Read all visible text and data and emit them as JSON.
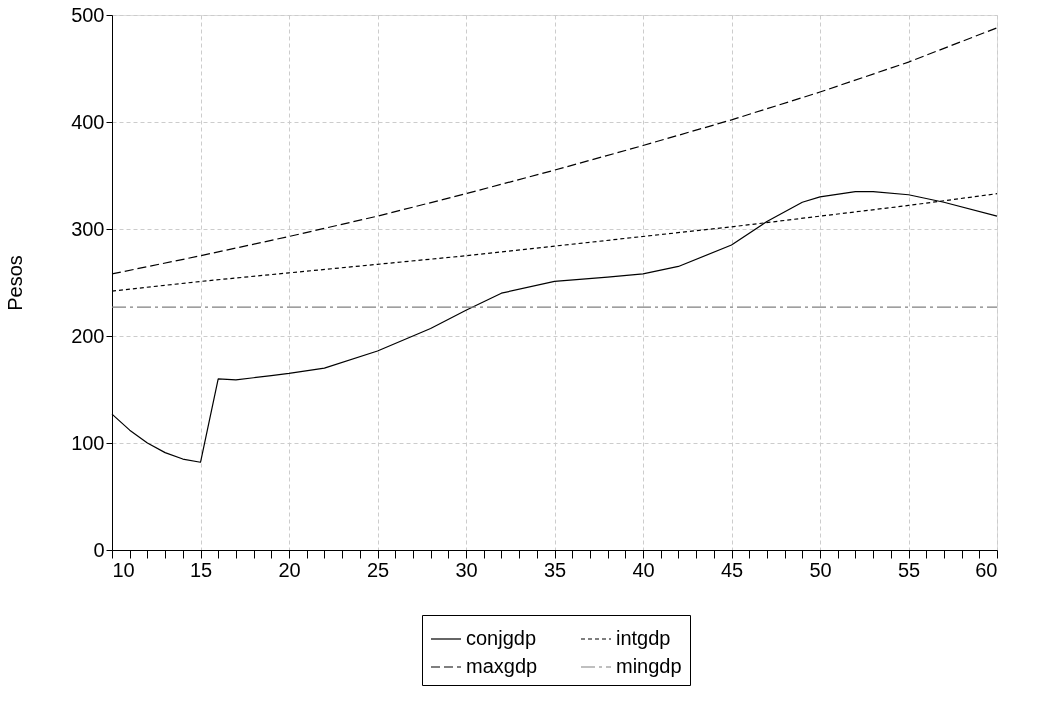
{
  "chart_data": {
    "type": "line",
    "ylabel": "Pesos",
    "xlim": [
      10,
      60
    ],
    "ylim": [
      0,
      500
    ],
    "xticks": [
      10,
      {
        "value": 11,
        "label": null
      },
      {
        "value": 12,
        "label": null
      },
      {
        "value": 13,
        "label": null
      },
      {
        "value": 14,
        "label": null
      },
      15,
      {
        "value": 16,
        "label": null
      },
      {
        "value": 17,
        "label": null
      },
      {
        "value": 18,
        "label": null
      },
      {
        "value": 19,
        "label": null
      },
      20,
      {
        "value": 21,
        "label": null
      },
      {
        "value": 22,
        "label": null
      },
      {
        "value": 23,
        "label": null
      },
      {
        "value": 24,
        "label": null
      },
      25,
      {
        "value": 26,
        "label": null
      },
      {
        "value": 27,
        "label": null
      },
      {
        "value": 28,
        "label": null
      },
      {
        "value": 29,
        "label": null
      },
      30,
      {
        "value": 31,
        "label": null
      },
      {
        "value": 32,
        "label": null
      },
      {
        "value": 33,
        "label": null
      },
      {
        "value": 34,
        "label": null
      },
      35,
      {
        "value": 36,
        "label": null
      },
      {
        "value": 37,
        "label": null
      },
      {
        "value": 38,
        "label": null
      },
      {
        "value": 39,
        "label": null
      },
      40,
      {
        "value": 41,
        "label": null
      },
      {
        "value": 42,
        "label": null
      },
      {
        "value": 43,
        "label": null
      },
      {
        "value": 44,
        "label": null
      },
      45,
      {
        "value": 46,
        "label": null
      },
      {
        "value": 47,
        "label": null
      },
      {
        "value": 48,
        "label": null
      },
      {
        "value": 49,
        "label": null
      },
      50,
      {
        "value": 51,
        "label": null
      },
      {
        "value": 52,
        "label": null
      },
      {
        "value": 53,
        "label": null
      },
      {
        "value": 54,
        "label": null
      },
      55,
      {
        "value": 56,
        "label": null
      },
      {
        "value": 57,
        "label": null
      },
      {
        "value": 58,
        "label": null
      },
      {
        "value": 59,
        "label": null
      },
      60
    ],
    "yticks": [
      0,
      100,
      200,
      300,
      400,
      500
    ],
    "grid": true,
    "legend": "bottom",
    "marker": "none",
    "series": [
      {
        "name": "conjgdp",
        "color": "#000000",
        "line_style": "solid",
        "x": [
          10,
          11,
          12,
          13,
          14,
          15,
          16,
          17,
          18,
          19,
          20,
          22,
          25,
          28,
          30,
          32,
          35,
          38,
          40,
          42,
          45,
          47,
          49,
          50,
          52,
          53,
          55,
          57,
          60
        ],
        "values": [
          127,
          112,
          100,
          91,
          85,
          82,
          160,
          159,
          161,
          163,
          165,
          170,
          186,
          207,
          224,
          240,
          251,
          255,
          258,
          265,
          285,
          307,
          325,
          330,
          335,
          335,
          332,
          325,
          312
        ]
      },
      {
        "name": "maxgdp",
        "color": "#000000",
        "line_style": "dashed",
        "x": [
          10,
          15,
          20,
          25,
          30,
          35,
          40,
          45,
          50,
          55,
          60
        ],
        "values": [
          258,
          275,
          293,
          312,
          333,
          355,
          378,
          402,
          428,
          456,
          488
        ]
      },
      {
        "name": "intgdp",
        "color": "#000000",
        "line_style": "dotted",
        "x": [
          10,
          15,
          20,
          25,
          30,
          35,
          40,
          45,
          50,
          55,
          60
        ],
        "values": [
          242,
          251,
          259,
          267,
          275,
          284,
          293,
          302,
          312,
          322,
          333
        ]
      },
      {
        "name": "mingdp",
        "color": "#808080",
        "line_style": "dashdot",
        "x": [
          10,
          60
        ],
        "values": [
          227,
          227
        ]
      }
    ]
  }
}
